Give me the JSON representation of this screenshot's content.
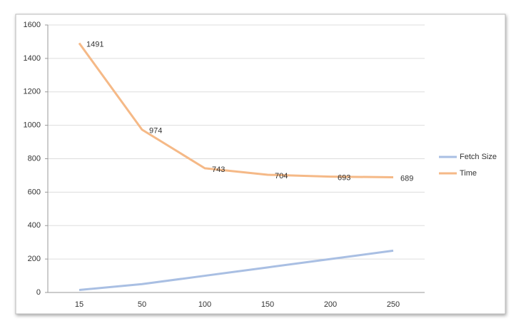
{
  "chart_data": {
    "type": "line",
    "categories": [
      "15",
      "50",
      "100",
      "150",
      "200",
      "250"
    ],
    "series": [
      {
        "name": "Fetch Size",
        "color": "#a9bfe3",
        "values": [
          15,
          50,
          100,
          150,
          200,
          250
        ]
      },
      {
        "name": "Time",
        "color": "#f5b987",
        "values": [
          1491,
          974,
          743,
          704,
          693,
          689
        ],
        "show_labels": true
      }
    ],
    "ylim": [
      0,
      1600
    ],
    "yticks": [
      0,
      200,
      400,
      600,
      800,
      1000,
      1200,
      1400,
      1600
    ],
    "grid": true,
    "legend": "right"
  }
}
